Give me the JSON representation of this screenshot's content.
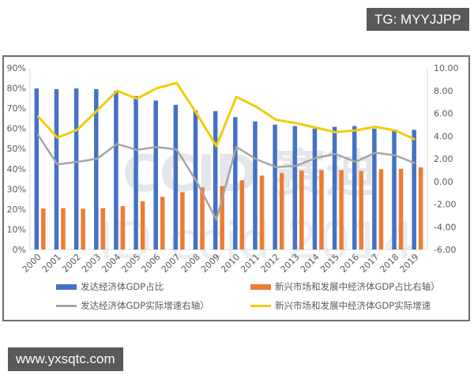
{
  "overlays": {
    "top_tag": "TG: MYYJJPP",
    "bottom_tag": "www.yxsqtc.com"
  },
  "watermark": {
    "line1": "CCID 赛迪",
    "line2": "ID ccid 2014"
  },
  "colors": {
    "developed_share": "#4472C4",
    "emerging_share": "#ED7D31",
    "developed_growth": "#A5A5A5",
    "emerging_growth": "#F2CC0C",
    "axis_text": "#595959",
    "frame": "#6e6e6e",
    "tag_bg": "#595959"
  },
  "legend": {
    "items": [
      {
        "label": "发达经济体GDP占比",
        "kind": "bar",
        "color": "#4472C4"
      },
      {
        "label": "新兴市场和发展中经济体GDP占比右轴）",
        "kind": "bar",
        "color": "#ED7D31"
      },
      {
        "label": "发达经济体GDP实际增速右轴）",
        "kind": "line",
        "color": "#A5A5A5"
      },
      {
        "label": "新兴市场和发展中经济体GDP实际增速",
        "kind": "line",
        "color": "#F2CC0C"
      }
    ]
  },
  "chart_data": {
    "type": "bar",
    "title": "",
    "xlabel": "",
    "ylabel": "",
    "categories": [
      "2000",
      "2001",
      "2002",
      "2003",
      "2004",
      "2005",
      "2006",
      "2007",
      "2008",
      "2009",
      "2010",
      "2011",
      "2012",
      "2013",
      "2014",
      "2015",
      "2016",
      "2017",
      "2018",
      "2019"
    ],
    "left_axis": {
      "ticks": [
        "0%",
        "10%",
        "20%",
        "30%",
        "40%",
        "50%",
        "60%",
        "70%",
        "80%",
        "90%"
      ],
      "ylim": [
        0,
        90
      ]
    },
    "right_axis": {
      "ticks": [
        "-6.00",
        "-4.00",
        "-2.00",
        "0.00",
        "2.00",
        "4.00",
        "6.00",
        "8.00",
        "10.00"
      ],
      "ylim": [
        -6,
        10
      ]
    },
    "grid": false,
    "legend_position": "bottom",
    "series": [
      {
        "name": "发达经济体GDP占比",
        "type": "bar",
        "axis": "left",
        "values": [
          79.8,
          79.5,
          79.8,
          79.5,
          78.5,
          76.0,
          73.8,
          71.7,
          68.9,
          68.6,
          65.6,
          63.5,
          61.9,
          61.2,
          59.9,
          60.8,
          61.2,
          59.9,
          58.7,
          59.3
        ]
      },
      {
        "name": "新兴市场和发展中经济体GDP占比右轴）",
        "type": "bar",
        "axis": "left",
        "values": [
          20.3,
          20.5,
          20.2,
          20.5,
          21.5,
          23.9,
          26.1,
          28.4,
          30.8,
          31.4,
          34.3,
          36.6,
          37.9,
          39.1,
          39.4,
          39.4,
          38.9,
          39.8,
          40.0,
          40.7
        ]
      },
      {
        "name": "发达经济体GDP实际增速右轴）",
        "type": "line",
        "axis": "right",
        "values": [
          4.16,
          1.49,
          1.72,
          2.0,
          3.3,
          2.77,
          3.04,
          2.81,
          0.0,
          -3.38,
          3.04,
          1.96,
          1.26,
          1.37,
          2.07,
          2.42,
          1.72,
          2.53,
          2.3,
          1.6
        ]
      },
      {
        "name": "新兴市场和发展中经济体GDP实际增速",
        "type": "line",
        "axis": "right",
        "values": [
          5.78,
          3.85,
          4.55,
          6.24,
          7.98,
          7.29,
          8.21,
          8.68,
          6.0,
          3.11,
          7.45,
          6.59,
          5.43,
          5.13,
          4.74,
          4.34,
          4.5,
          4.81,
          4.5,
          3.69
        ]
      }
    ]
  }
}
